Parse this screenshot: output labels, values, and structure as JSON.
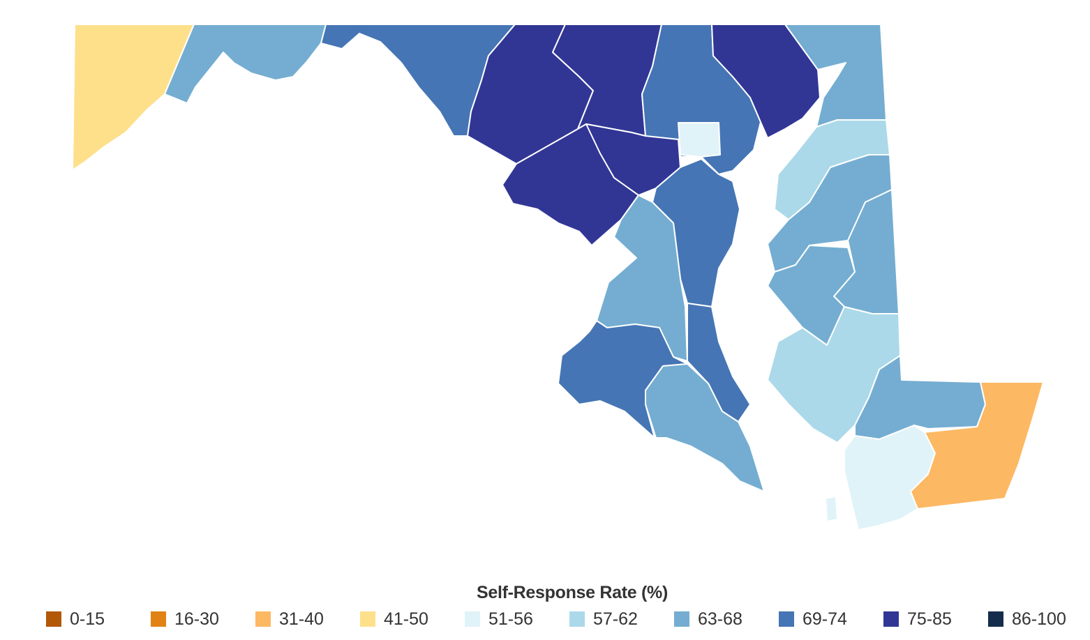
{
  "map": {
    "region": "Maryland",
    "regions": [
      {
        "id": "garrett",
        "bin": "41-50"
      },
      {
        "id": "allegany",
        "bin": "63-68"
      },
      {
        "id": "washington",
        "bin": "69-74"
      },
      {
        "id": "frederick",
        "bin": "75-85"
      },
      {
        "id": "carroll",
        "bin": "75-85"
      },
      {
        "id": "baltimore-county",
        "bin": "69-74"
      },
      {
        "id": "baltimore-city",
        "bin": "51-56"
      },
      {
        "id": "harford",
        "bin": "75-85"
      },
      {
        "id": "cecil",
        "bin": "63-68"
      },
      {
        "id": "montgomery",
        "bin": "75-85"
      },
      {
        "id": "howard",
        "bin": "75-85"
      },
      {
        "id": "anne-arundel",
        "bin": "69-74"
      },
      {
        "id": "prince-georges",
        "bin": "63-68"
      },
      {
        "id": "charles",
        "bin": "69-74"
      },
      {
        "id": "calvert",
        "bin": "69-74"
      },
      {
        "id": "st-marys",
        "bin": "63-68"
      },
      {
        "id": "kent",
        "bin": "57-62"
      },
      {
        "id": "queen-annes",
        "bin": "63-68"
      },
      {
        "id": "caroline",
        "bin": "63-68"
      },
      {
        "id": "talbot",
        "bin": "63-68"
      },
      {
        "id": "dorchester",
        "bin": "57-62"
      },
      {
        "id": "wicomico",
        "bin": "63-68"
      },
      {
        "id": "somerset",
        "bin": "51-56"
      },
      {
        "id": "worcester",
        "bin": "31-40"
      }
    ]
  },
  "legend": {
    "title": "Self-Response Rate (%)",
    "items": [
      {
        "label": "0-15",
        "color": "#b35806"
      },
      {
        "label": "16-30",
        "color": "#e08214"
      },
      {
        "label": "31-40",
        "color": "#fdb863"
      },
      {
        "label": "41-50",
        "color": "#fee08b"
      },
      {
        "label": "51-56",
        "color": "#e0f3f8"
      },
      {
        "label": "57-62",
        "color": "#abd9e9"
      },
      {
        "label": "63-68",
        "color": "#74add1"
      },
      {
        "label": "69-74",
        "color": "#4575b4"
      },
      {
        "label": "75-85",
        "color": "#313695"
      },
      {
        "label": "86-100",
        "color": "#142d4c"
      }
    ]
  }
}
